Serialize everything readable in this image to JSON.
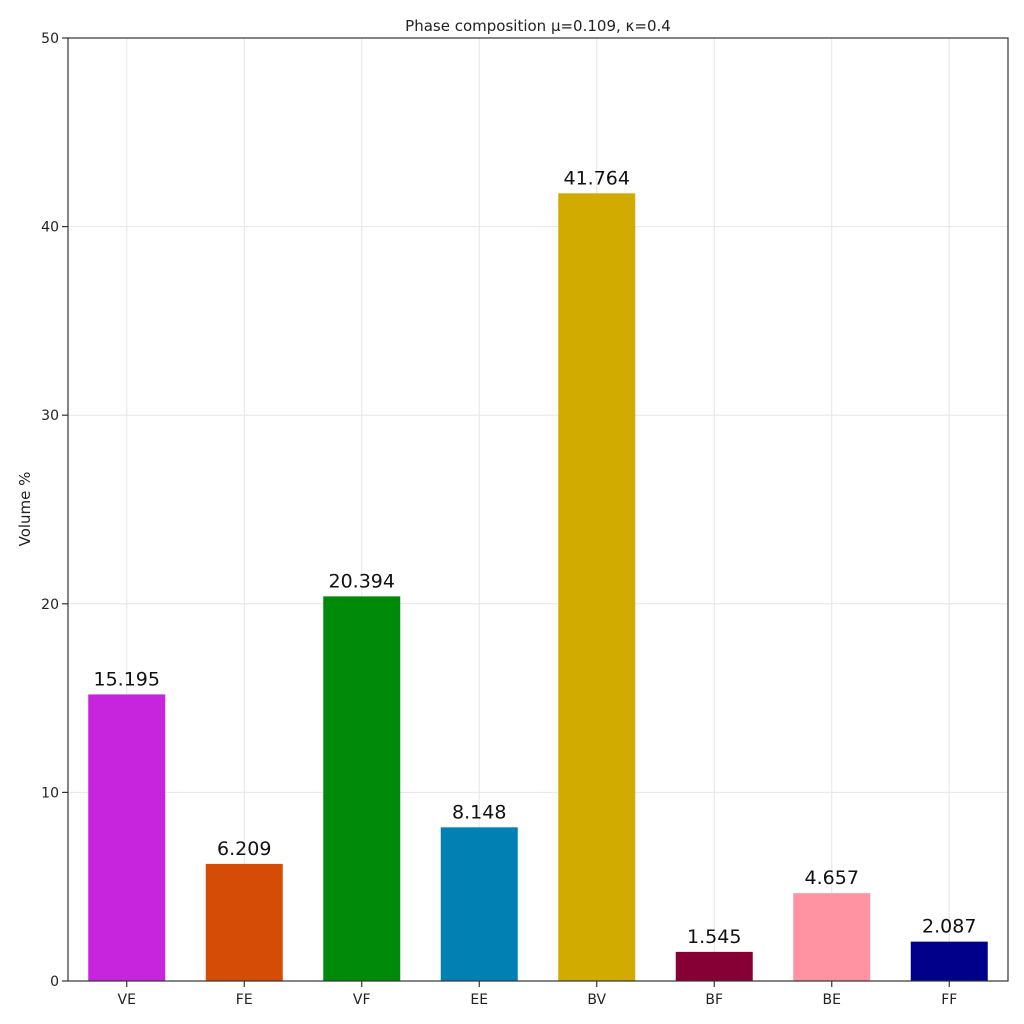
{
  "chart_data": {
    "type": "bar",
    "title": "Phase composition μ=0.109, κ=0.4",
    "xlabel": "",
    "ylabel": "Volume %",
    "ylim": [
      0,
      50
    ],
    "yticks": [
      0,
      10,
      20,
      30,
      40,
      50
    ],
    "grid": true,
    "categories": [
      "VE",
      "FE",
      "VF",
      "EE",
      "BV",
      "BF",
      "BE",
      "FF"
    ],
    "values": [
      15.195,
      6.209,
      20.394,
      8.148,
      41.764,
      1.545,
      4.657,
      2.087
    ],
    "labels": [
      "15.195",
      "6.209",
      "20.394",
      "8.148",
      "41.764",
      "1.545",
      "4.657",
      "2.087"
    ],
    "colors": [
      "#c724de",
      "#d44c05",
      "#008a0a",
      "#0080b3",
      "#d1ab00",
      "#860035",
      "#ff93a2",
      "#00008b"
    ]
  }
}
